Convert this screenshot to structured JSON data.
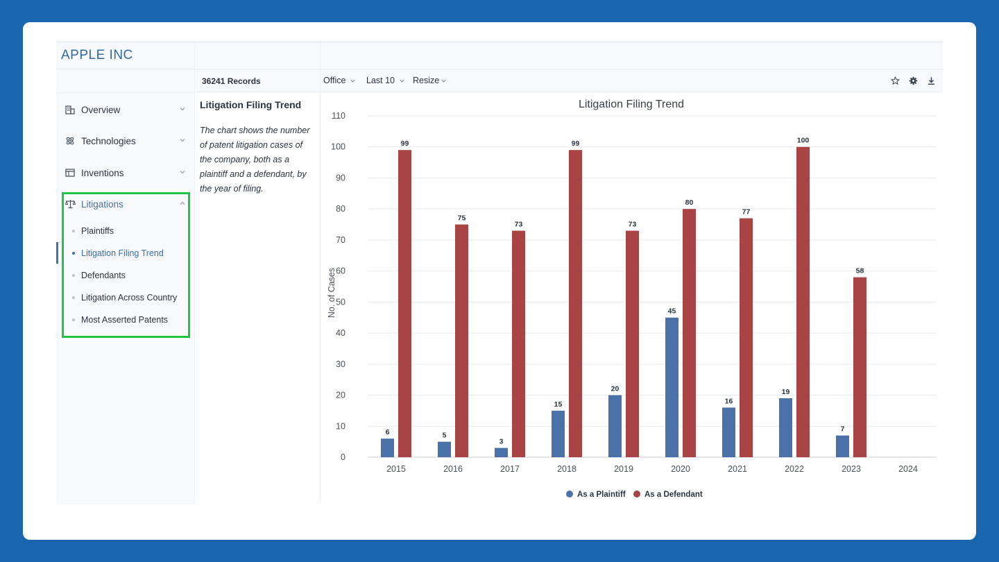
{
  "brand": "APPLE INC",
  "records": "36241 Records",
  "nav": {
    "items": [
      {
        "label": "Overview",
        "icon": "building-icon"
      },
      {
        "label": "Technologies",
        "icon": "atom-icon"
      },
      {
        "label": "Inventions",
        "icon": "table-icon"
      },
      {
        "label": "Litigations",
        "icon": "scales-icon"
      }
    ],
    "sub_items": [
      {
        "label": "Plaintiffs"
      },
      {
        "label": "Litigation Filing Trend"
      },
      {
        "label": "Defendants"
      },
      {
        "label": "Litigation Across Country"
      },
      {
        "label": "Most Asserted Patents"
      }
    ]
  },
  "panel": {
    "title": "Litigation Filing Trend",
    "description": "The chart shows the number of patent litigation cases of the company, both as a plaintiff and a defendant, by the year of filing."
  },
  "toolbar": {
    "office": "Office",
    "last": "Last 10",
    "resize": "Resize",
    "icons": [
      "star-icon",
      "gear-icon",
      "download-icon"
    ]
  },
  "colors": {
    "plaintiff": "#4a72a8",
    "defendant": "#a94444",
    "accent": "#2f6aa8",
    "highlight": "#22c447"
  },
  "chart_data": {
    "type": "bar",
    "title": "Litigation Filing Trend",
    "xlabel": "",
    "ylabel": "No. of Cases",
    "ylim": [
      0,
      110
    ],
    "yticks": [
      0,
      10,
      20,
      30,
      40,
      50,
      60,
      70,
      80,
      90,
      100,
      110
    ],
    "categories": [
      "2015",
      "2016",
      "2017",
      "2018",
      "2019",
      "2020",
      "2021",
      "2022",
      "2023",
      "2024"
    ],
    "series": [
      {
        "name": "As a Plaintiff",
        "values": [
          6,
          5,
          3,
          15,
          20,
          45,
          16,
          19,
          7,
          null
        ]
      },
      {
        "name": "As a Defendant",
        "values": [
          99,
          75,
          73,
          99,
          73,
          80,
          77,
          100,
          58,
          null
        ]
      }
    ],
    "legend": "bottom-center",
    "grid": true
  }
}
